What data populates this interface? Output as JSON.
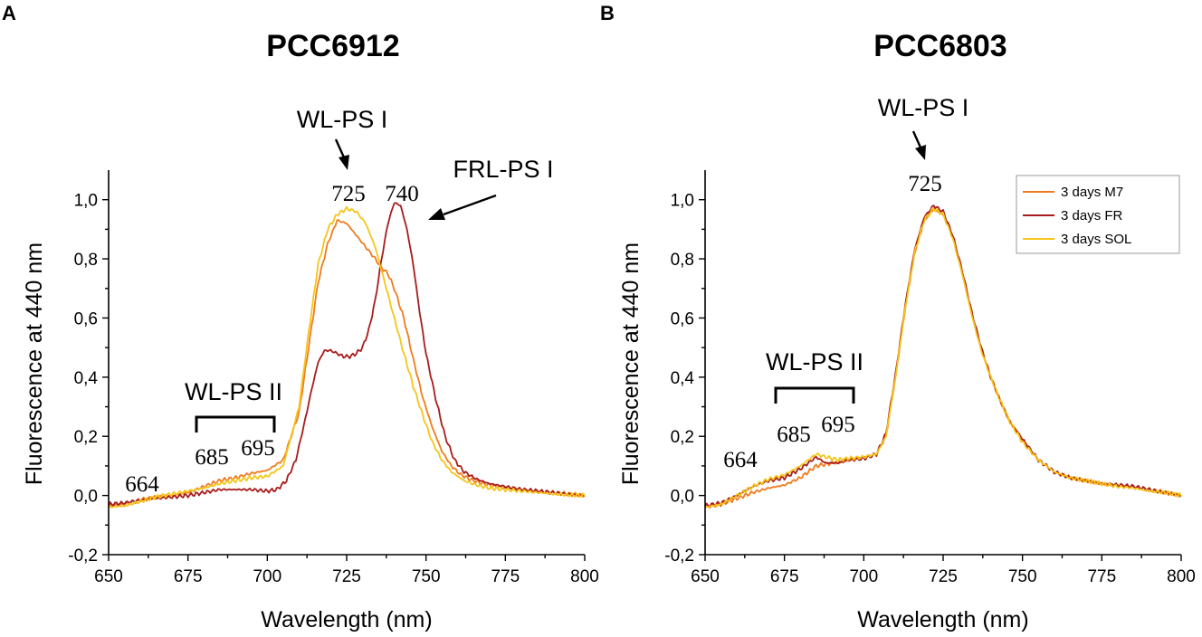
{
  "chart_data": [
    {
      "type": "line",
      "panel": "A",
      "title": "PCC6912",
      "xlabel": "Wavelength (nm)",
      "ylabel": "Fluorescence at 440 nm",
      "xlim": [
        650,
        800
      ],
      "ylim": [
        -0.2,
        1.1
      ],
      "xticks": [
        "650",
        "675",
        "700",
        "725",
        "750",
        "775",
        "800"
      ],
      "yticks": [
        "-0,2",
        "0,0",
        "0,2",
        "0,4",
        "0,6",
        "0,8",
        "1,0"
      ],
      "series": [
        {
          "name": "3 days M7",
          "color": "#f07b1e",
          "points": [
            [
              650,
              -0.035
            ],
            [
              655,
              -0.03
            ],
            [
              660,
              -0.015
            ],
            [
              665,
              -0.005
            ],
            [
              670,
              0.0
            ],
            [
              675,
              0.01
            ],
            [
              680,
              0.03
            ],
            [
              685,
              0.05
            ],
            [
              690,
              0.06
            ],
            [
              695,
              0.075
            ],
            [
              700,
              0.085
            ],
            [
              705,
              0.12
            ],
            [
              710,
              0.28
            ],
            [
              713,
              0.5
            ],
            [
              716,
              0.72
            ],
            [
              719,
              0.85
            ],
            [
              722,
              0.93
            ],
            [
              725,
              0.92
            ],
            [
              728,
              0.88
            ],
            [
              731,
              0.84
            ],
            [
              734,
              0.8
            ],
            [
              736,
              0.77
            ],
            [
              738,
              0.75
            ],
            [
              740,
              0.7
            ],
            [
              743,
              0.6
            ],
            [
              746,
              0.46
            ],
            [
              749,
              0.33
            ],
            [
              752,
              0.23
            ],
            [
              755,
              0.15
            ],
            [
              758,
              0.1
            ],
            [
              761,
              0.07
            ],
            [
              765,
              0.05
            ],
            [
              770,
              0.035
            ],
            [
              775,
              0.025
            ],
            [
              780,
              0.02
            ],
            [
              785,
              0.015
            ],
            [
              790,
              0.01
            ],
            [
              795,
              0.005
            ],
            [
              800,
              0.0
            ]
          ]
        },
        {
          "name": "3 days FR",
          "color": "#a81c1c",
          "points": [
            [
              650,
              -0.03
            ],
            [
              655,
              -0.025
            ],
            [
              660,
              -0.015
            ],
            [
              665,
              -0.01
            ],
            [
              670,
              -0.005
            ],
            [
              675,
              0.0
            ],
            [
              680,
              0.01
            ],
            [
              685,
              0.02
            ],
            [
              690,
              0.02
            ],
            [
              695,
              0.02
            ],
            [
              700,
              0.015
            ],
            [
              703,
              0.02
            ],
            [
              706,
              0.05
            ],
            [
              709,
              0.12
            ],
            [
              712,
              0.26
            ],
            [
              714,
              0.36
            ],
            [
              716,
              0.45
            ],
            [
              718,
              0.49
            ],
            [
              720,
              0.49
            ],
            [
              722,
              0.48
            ],
            [
              724,
              0.47
            ],
            [
              726,
              0.47
            ],
            [
              728,
              0.48
            ],
            [
              730,
              0.5
            ],
            [
              732,
              0.56
            ],
            [
              734,
              0.66
            ],
            [
              736,
              0.8
            ],
            [
              738,
              0.92
            ],
            [
              740,
              0.99
            ],
            [
              742,
              0.98
            ],
            [
              744,
              0.9
            ],
            [
              746,
              0.78
            ],
            [
              748,
              0.62
            ],
            [
              750,
              0.48
            ],
            [
              753,
              0.33
            ],
            [
              756,
              0.2
            ],
            [
              759,
              0.12
            ],
            [
              762,
              0.08
            ],
            [
              766,
              0.055
            ],
            [
              770,
              0.04
            ],
            [
              775,
              0.03
            ],
            [
              780,
              0.02
            ],
            [
              785,
              0.015
            ],
            [
              790,
              0.01
            ],
            [
              795,
              0.005
            ],
            [
              800,
              0.0
            ]
          ]
        },
        {
          "name": "3 days SOL",
          "color": "#f5c518",
          "points": [
            [
              650,
              -0.04
            ],
            [
              655,
              -0.035
            ],
            [
              660,
              -0.02
            ],
            [
              665,
              -0.005
            ],
            [
              670,
              0.005
            ],
            [
              675,
              0.015
            ],
            [
              680,
              0.025
            ],
            [
              685,
              0.04
            ],
            [
              690,
              0.05
            ],
            [
              695,
              0.06
            ],
            [
              700,
              0.065
            ],
            [
              705,
              0.1
            ],
            [
              710,
              0.3
            ],
            [
              713,
              0.55
            ],
            [
              716,
              0.78
            ],
            [
              719,
              0.9
            ],
            [
              722,
              0.95
            ],
            [
              725,
              0.97
            ],
            [
              728,
              0.96
            ],
            [
              731,
              0.92
            ],
            [
              734,
              0.84
            ],
            [
              737,
              0.72
            ],
            [
              740,
              0.6
            ],
            [
              743,
              0.48
            ],
            [
              746,
              0.37
            ],
            [
              749,
              0.27
            ],
            [
              752,
              0.18
            ],
            [
              755,
              0.12
            ],
            [
              758,
              0.08
            ],
            [
              762,
              0.05
            ],
            [
              766,
              0.035
            ],
            [
              770,
              0.025
            ],
            [
              775,
              0.02
            ],
            [
              780,
              0.015
            ],
            [
              785,
              0.01
            ],
            [
              790,
              0.005
            ],
            [
              795,
              0.002
            ],
            [
              800,
              0.0
            ]
          ]
        }
      ],
      "annotations": {
        "wl_ps1": "WL-PS I",
        "frl_ps1": "FRL-PS I",
        "wl_ps2": "WL-PS II",
        "peak_725": "725",
        "peak_740": "740",
        "peak_685": "685",
        "peak_695": "695",
        "peak_664": "664"
      }
    },
    {
      "type": "line",
      "panel": "B",
      "title": "PCC6803",
      "xlabel": "Wavelength (nm)",
      "ylabel": "Fluorescence at 440 nm",
      "xlim": [
        650,
        800
      ],
      "ylim": [
        -0.2,
        1.1
      ],
      "xticks": [
        "650",
        "675",
        "700",
        "725",
        "750",
        "775",
        "800"
      ],
      "yticks": [
        "-0,2",
        "0,0",
        "0,2",
        "0,4",
        "0,6",
        "0,8",
        "1,0"
      ],
      "legend": "top-right",
      "series": [
        {
          "name": "3 days M7",
          "color": "#f07b1e",
          "points": [
            [
              650,
              -0.04
            ],
            [
              655,
              -0.03
            ],
            [
              660,
              -0.01
            ],
            [
              665,
              0.01
            ],
            [
              670,
              0.025
            ],
            [
              675,
              0.035
            ],
            [
              680,
              0.06
            ],
            [
              685,
              0.1
            ],
            [
              690,
              0.11
            ],
            [
              695,
              0.12
            ],
            [
              700,
              0.13
            ],
            [
              704,
              0.14
            ],
            [
              707,
              0.2
            ],
            [
              710,
              0.4
            ],
            [
              713,
              0.63
            ],
            [
              716,
              0.82
            ],
            [
              719,
              0.93
            ],
            [
              722,
              0.97
            ],
            [
              725,
              0.95
            ],
            [
              728,
              0.88
            ],
            [
              731,
              0.76
            ],
            [
              734,
              0.62
            ],
            [
              737,
              0.5
            ],
            [
              740,
              0.4
            ],
            [
              743,
              0.32
            ],
            [
              746,
              0.25
            ],
            [
              750,
              0.19
            ],
            [
              755,
              0.12
            ],
            [
              760,
              0.08
            ],
            [
              765,
              0.06
            ],
            [
              770,
              0.05
            ],
            [
              775,
              0.04
            ],
            [
              780,
              0.035
            ],
            [
              785,
              0.03
            ],
            [
              790,
              0.02
            ],
            [
              795,
              0.01
            ],
            [
              800,
              0.0
            ]
          ]
        },
        {
          "name": "3 days FR",
          "color": "#a81c1c",
          "points": [
            [
              650,
              -0.035
            ],
            [
              655,
              -0.025
            ],
            [
              660,
              0.0
            ],
            [
              665,
              0.03
            ],
            [
              670,
              0.05
            ],
            [
              675,
              0.06
            ],
            [
              680,
              0.09
            ],
            [
              685,
              0.13
            ],
            [
              688,
              0.11
            ],
            [
              692,
              0.11
            ],
            [
              695,
              0.12
            ],
            [
              700,
              0.125
            ],
            [
              704,
              0.14
            ],
            [
              707,
              0.21
            ],
            [
              710,
              0.41
            ],
            [
              713,
              0.64
            ],
            [
              716,
              0.83
            ],
            [
              719,
              0.94
            ],
            [
              722,
              0.98
            ],
            [
              725,
              0.96
            ],
            [
              728,
              0.88
            ],
            [
              731,
              0.76
            ],
            [
              734,
              0.62
            ],
            [
              737,
              0.5
            ],
            [
              740,
              0.4
            ],
            [
              743,
              0.32
            ],
            [
              746,
              0.25
            ],
            [
              750,
              0.19
            ],
            [
              755,
              0.12
            ],
            [
              760,
              0.08
            ],
            [
              765,
              0.06
            ],
            [
              770,
              0.05
            ],
            [
              775,
              0.04
            ],
            [
              780,
              0.035
            ],
            [
              785,
              0.03
            ],
            [
              790,
              0.02
            ],
            [
              795,
              0.01
            ],
            [
              800,
              0.0
            ]
          ]
        },
        {
          "name": "3 days SOL",
          "color": "#f5c518",
          "points": [
            [
              650,
              -0.04
            ],
            [
              655,
              -0.03
            ],
            [
              660,
              0.0
            ],
            [
              665,
              0.03
            ],
            [
              670,
              0.055
            ],
            [
              675,
              0.07
            ],
            [
              680,
              0.1
            ],
            [
              685,
              0.14
            ],
            [
              688,
              0.13
            ],
            [
              692,
              0.12
            ],
            [
              695,
              0.125
            ],
            [
              700,
              0.13
            ],
            [
              704,
              0.14
            ],
            [
              707,
              0.2
            ],
            [
              710,
              0.4
            ],
            [
              713,
              0.63
            ],
            [
              716,
              0.82
            ],
            [
              719,
              0.93
            ],
            [
              722,
              0.97
            ],
            [
              725,
              0.95
            ],
            [
              728,
              0.87
            ],
            [
              731,
              0.75
            ],
            [
              734,
              0.61
            ],
            [
              737,
              0.49
            ],
            [
              740,
              0.4
            ],
            [
              743,
              0.32
            ],
            [
              746,
              0.25
            ],
            [
              750,
              0.18
            ],
            [
              755,
              0.12
            ],
            [
              760,
              0.08
            ],
            [
              765,
              0.06
            ],
            [
              770,
              0.05
            ],
            [
              775,
              0.04
            ],
            [
              780,
              0.03
            ],
            [
              785,
              0.025
            ],
            [
              790,
              0.015
            ],
            [
              795,
              0.01
            ],
            [
              800,
              0.0
            ]
          ]
        }
      ],
      "annotations": {
        "wl_ps1": "WL-PS I",
        "wl_ps2": "WL-PS II",
        "peak_725": "725",
        "peak_685": "685",
        "peak_695": "695",
        "peak_664": "664"
      }
    }
  ]
}
